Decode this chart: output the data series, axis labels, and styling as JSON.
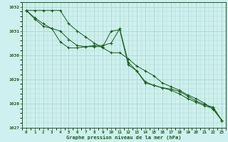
{
  "title": "Graphe pression niveau de la mer (hPa)",
  "background_color": "#cef0ee",
  "line_color": "#1a5c1a",
  "grid_color": "#a8d8d0",
  "hours": [
    0,
    1,
    2,
    3,
    4,
    5,
    6,
    7,
    8,
    9,
    10,
    11,
    12,
    13,
    14,
    15,
    16,
    17,
    18,
    19,
    20,
    21,
    22,
    23
  ],
  "series1": [
    1031.85,
    1031.55,
    1031.3,
    1031.1,
    1030.55,
    1030.3,
    1030.3,
    1030.35,
    1030.35,
    1030.35,
    1031.0,
    1031.05,
    1029.6,
    1029.35,
    1028.9,
    1028.75,
    1028.65,
    1028.6,
    1028.5,
    1028.3,
    1028.1,
    1027.95,
    1027.85,
    1027.3
  ],
  "series2": [
    1031.85,
    1031.5,
    1031.2,
    1031.1,
    1031.0,
    1030.65,
    1030.4,
    1030.35,
    1030.4,
    1030.4,
    1030.5,
    1031.1,
    1029.7,
    1029.35,
    1028.85,
    1028.75,
    1028.65,
    1028.55,
    1028.4,
    1028.2,
    1028.05,
    1027.9,
    1027.8,
    1027.3
  ],
  "series3": [
    1031.85,
    1031.85,
    1031.85,
    1031.85,
    1031.85,
    1031.3,
    1031.0,
    1030.75,
    1030.5,
    1030.3,
    1030.1,
    1030.1,
    1029.85,
    1029.55,
    1029.35,
    1029.15,
    1028.85,
    1028.7,
    1028.55,
    1028.35,
    1028.2,
    1028.0,
    1027.75,
    1027.3
  ],
  "ylim": [
    1027.0,
    1032.2
  ],
  "yticks": [
    1027,
    1028,
    1029,
    1030,
    1031,
    1032
  ]
}
